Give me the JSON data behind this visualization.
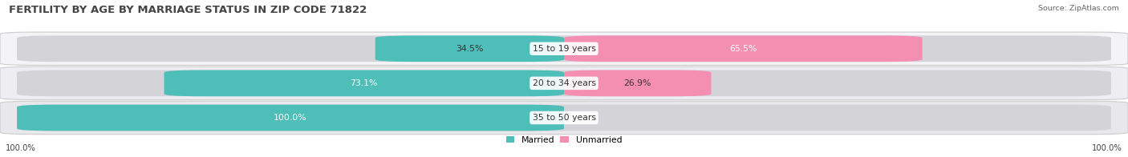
{
  "title": "FERTILITY BY AGE BY MARRIAGE STATUS IN ZIP CODE 71822",
  "source": "Source: ZipAtlas.com",
  "categories": [
    "15 to 19 years",
    "20 to 34 years",
    "35 to 50 years"
  ],
  "married_pct": [
    34.5,
    73.1,
    100.0
  ],
  "unmarried_pct": [
    65.5,
    26.9,
    0.0
  ],
  "married_color": "#4dbfb8",
  "unmarried_color": "#f48fb1",
  "row_bg_colors": [
    "#f0f0f0",
    "#e8e8e8",
    "#e0e0e0"
  ],
  "track_color": "#d8d8d8",
  "title_fontsize": 9.5,
  "label_fontsize": 7.8,
  "source_fontsize": 6.8,
  "tick_fontsize": 7.2,
  "figsize": [
    14.06,
    1.96
  ],
  "dpi": 100
}
